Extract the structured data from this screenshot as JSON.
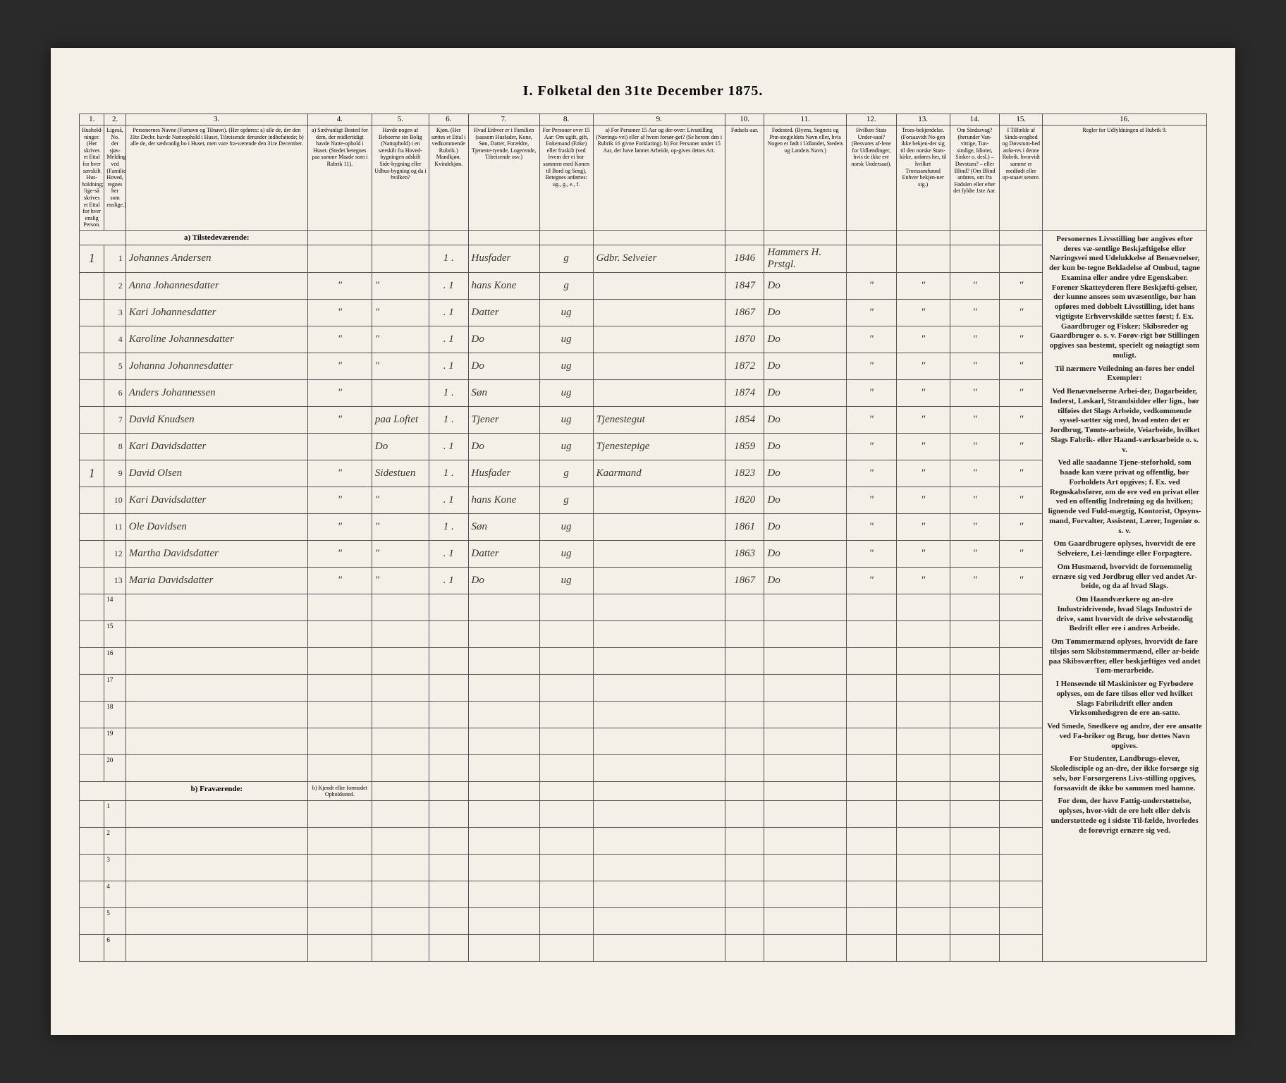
{
  "title": "I.  Folketal  den 31te December 1875.",
  "columns": {
    "nums": [
      "1.",
      "2.",
      "3.",
      "4.",
      "5.",
      "6.",
      "7.",
      "8.",
      "9.",
      "10.",
      "11.",
      "12.",
      "13.",
      "14.",
      "15.",
      "16."
    ],
    "headers": [
      "Hushold-ninger. (Her skrives et Ettal for hver særskilt Hus-holdning; lige-så skrives et Ettal for hver enslig Person.",
      "Ligeså, No. der sjøs-Melding ved (Familiens Hoved, regnes her som enslige.)",
      "Personernes Navne (Fornavn og Tilnavn).\n(Her opføres:\na) alle de, der den 31te Decbr. havde Natteophold i Huset, Tilreisende derunder indbefattede;\nb) alle de, der sædvanlig bo i Huset, men vare fra-værende den 31te December.",
      "a) Sædvanligt Bosted for dem, der midlertidigt havde Natte-ophold i Huset. (Stedet betegnes paa samme Maade som i Rubrik 11).",
      "Havde nogen af Beboerne sin Bolig (Nattophold) i en særskilt fra Hoved-bygningen adskilt Side-bygning eller Udhus-bygning og da i hvilken?",
      "Kjøn. (Her sættes et Ettal i vedkommende Rubrik.) Mandkjøn. Kvindekjøn.",
      "Hvad Enhver er i Familien (saasom Husfader, Kone, Søn, Datter, Forældre, Tjeneste-tyende, Logerende, Tilreisende osv.)",
      "For Personer over 15 Aar: Om ugift, gift, Enkemand (Enke) eller fraskilt (ved hvem der ei bor sammen med Konen til Bord og Seng). Betegnes anførtes: ug., g., e., f.",
      "a) For Personer 15 Aar og der-over: Livsstilling (Nærings-vei) eller af hvem forsør-get? (Se herom den i Rubrik 16 givne Forklaring).\nb) For Personer under 15 Aar, der have lønnet Arbeide, op-gives dettes Art.",
      "Fødsels-aar.",
      "Fødested. (Byens, Sognets og Præ-stegjeldets Navn eller, hvis Nogen er født i Udlandet, Stedets og Landets Navn.)",
      "Hvilken Stats Under-saat? (Besvares af-lene for Udlændinger, hvis de ikke ere norsk Undersaat).",
      "Troes-bekjendelse. (Forsaavidt No-gen ikke bekjen-der sig til den norske Stats-kirke, anføres her, til hvilket Troessamfunnd Enhver bekjen-ner sig.)",
      "Om Sindssvag? (herunder Van-vittige, Tun-sindige, Idioter, Sinker o. desl.) – Døvstum? – eller Blind? (Om Blind anføres, om fra Fødslen eller efter det fyldte 1ste Aar.",
      "I Tilfælde af Sinds-svaghed og Døvstum-hed anfø-res i denne Rubrik. hvorvidt samme er medfødt eller op-staaet senere.",
      "Regler for Udfyldningen af\nRubrik 9."
    ]
  },
  "sections": {
    "present": "a) Tilstedeværende:",
    "absent": "b) Fraværende:",
    "absent_col4": "b) Kjendt eller formodet Opholdssted."
  },
  "rows": [
    {
      "hh": "1",
      "n": "1",
      "name": "Johannes Andersen",
      "c4": "",
      "c5": "",
      "c6": "1 .",
      "c7": "Husfader",
      "c8": "g",
      "c9": "Gdbr. Selveier",
      "c10": "1846",
      "c11": "Hammers H. Prstgl.",
      "c12": "",
      "c13": "",
      "c14": "",
      "c15": ""
    },
    {
      "hh": "",
      "n": "2",
      "name": "Anna Johannesdatter",
      "c4": "\"",
      "c5": "\"",
      "c6": ". 1",
      "c7": "hans Kone",
      "c8": "g",
      "c9": "",
      "c10": "1847",
      "c11": "Do",
      "c12": "\"",
      "c13": "\"",
      "c14": "\"",
      "c15": "\""
    },
    {
      "hh": "",
      "n": "3",
      "name": "Kari Johannesdatter",
      "c4": "\"",
      "c5": "\"",
      "c6": ". 1",
      "c7": "Datter",
      "c8": "ug",
      "c9": "",
      "c10": "1867",
      "c11": "Do",
      "c12": "\"",
      "c13": "\"",
      "c14": "\"",
      "c15": "\""
    },
    {
      "hh": "",
      "n": "4",
      "name": "Karoline Johannesdatter",
      "c4": "\"",
      "c5": "\"",
      "c6": ". 1",
      "c7": "Do",
      "c8": "ug",
      "c9": "",
      "c10": "1870",
      "c11": "Do",
      "c12": "\"",
      "c13": "\"",
      "c14": "\"",
      "c15": "\""
    },
    {
      "hh": "",
      "n": "5",
      "name": "Johanna Johannesdatter",
      "c4": "\"",
      "c5": "\"",
      "c6": ". 1",
      "c7": "Do",
      "c8": "ug",
      "c9": "",
      "c10": "1872",
      "c11": "Do",
      "c12": "\"",
      "c13": "\"",
      "c14": "\"",
      "c15": "\""
    },
    {
      "hh": "",
      "n": "6",
      "name": "Anders Johannessen",
      "c4": "\"",
      "c5": "",
      "c6": "1 .",
      "c7": "Søn",
      "c8": "ug",
      "c9": "",
      "c10": "1874",
      "c11": "Do",
      "c12": "\"",
      "c13": "\"",
      "c14": "\"",
      "c15": "\""
    },
    {
      "hh": "",
      "n": "7",
      "name": "David Knudsen",
      "c4": "\"",
      "c5": "paa Loftet",
      "c6": "1 .",
      "c7": "Tjener",
      "c8": "ug",
      "c9": "Tjenestegut",
      "c10": "1854",
      "c11": "Do",
      "c12": "\"",
      "c13": "\"",
      "c14": "\"",
      "c15": "\""
    },
    {
      "hh": "",
      "n": "8",
      "name": "Kari Davidsdatter",
      "c4": "",
      "c5": "Do",
      "c6": ". 1",
      "c7": "Do",
      "c8": "ug",
      "c9": "Tjenestepige",
      "c10": "1859",
      "c11": "Do",
      "c12": "\"",
      "c13": "\"",
      "c14": "\"",
      "c15": "\""
    },
    {
      "hh": "1",
      "n": "9",
      "name": "David Olsen",
      "c4": "\"",
      "c5": "Sidestuen",
      "c6": "1 .",
      "c7": "Husfader",
      "c8": "g",
      "c9": "Kaarmand",
      "c10": "1823",
      "c11": "Do",
      "c12": "\"",
      "c13": "\"",
      "c14": "\"",
      "c15": "\""
    },
    {
      "hh": "",
      "n": "10",
      "name": "Kari Davidsdatter",
      "c4": "\"",
      "c5": "\"",
      "c6": ". 1",
      "c7": "hans Kone",
      "c8": "g",
      "c9": "",
      "c10": "1820",
      "c11": "Do",
      "c12": "\"",
      "c13": "\"",
      "c14": "\"",
      "c15": "\""
    },
    {
      "hh": "",
      "n": "11",
      "name": "Ole Davidsen",
      "c4": "\"",
      "c5": "\"",
      "c6": "1 .",
      "c7": "Søn",
      "c8": "ug",
      "c9": "",
      "c10": "1861",
      "c11": "Do",
      "c12": "\"",
      "c13": "\"",
      "c14": "\"",
      "c15": "\""
    },
    {
      "hh": "",
      "n": "12",
      "name": "Martha Davidsdatter",
      "c4": "\"",
      "c5": "\"",
      "c6": ". 1",
      "c7": "Datter",
      "c8": "ug",
      "c9": "",
      "c10": "1863",
      "c11": "Do",
      "c12": "\"",
      "c13": "\"",
      "c14": "\"",
      "c15": "\""
    },
    {
      "hh": "",
      "n": "13",
      "name": "Maria Davidsdatter",
      "c4": "\"",
      "c5": "\"",
      "c6": ". 1",
      "c7": "Do",
      "c8": "ug",
      "c9": "",
      "c10": "1867",
      "c11": "Do",
      "c12": "\"",
      "c13": "\"",
      "c14": "\"",
      "c15": "\""
    }
  ],
  "empty_present_from": 14,
  "empty_present_to": 20,
  "empty_absent_from": 1,
  "empty_absent_to": 6,
  "rules_text": [
    "Personernes Livsstilling bør angives efter deres væ-sentlige Beskjæftigelse eller Næringsvei med Udelukkelse af Benævnelser, der kun be-tegne Bekladelse af Ombud, tagne Examina eller andre ydre Egenskaber. Forener Skatteyderen flere Beskjæfti-gelser, der kunne ansees som uvæsentlige, bør han opføres med dobbelt Livsstilling, idet hans vigtigste Erhvervskilde sættes først; f. Ex. Gaardbruger og Fisker; Skibsreder og Gaardbruger o. s. v. Forøv-rigt bør Stillingen opgives saa bestemt, specielt og nøiagtigt som muligt.",
    "Til nærmere Veiledning an-føres her endel Exempler:",
    "Ved Benævnelserne Arbei-der, Dagarbeider, Inderst, Løskarl, Strandsidder eller lign., bør tilføies det Slags Arbeide, vedkommende syssel-sætter sig med, hvad enten det er Jordbrug, Tømte-arbeide, Veiarbeide, hvilket Slags Fabrik- eller Haand-værksarbeide o. s. v.",
    "Ved alle saadanne Tjene-steforhold, som baade kan være privat og offentlig, bør Forholdets Art opgives; f. Ex. ved Regnskabsfører, om de ere ved en privat eller ved en offentlig Indretning og da hvilken; lignende ved Fuld-mægtig, Kontorist, Opsyns-mand, Forvalter, Assistent, Lærer, Ingeniør o. s. v.",
    "Om Gaardbrugere oplyses, hvorvidt de ere Selveiere, Lei-lændinge eller Forpagtere.",
    "Om Husmænd, hvorvidt de fornemmelig ernære sig ved Jordbrug eller ved andet Ar-beide, og da af hvad Slags.",
    "Om Haandværkere og an-dre Industridrivende, hvad Slags Industri de drive, samt hvorvidt de drive selvstændig Bedrift eller ere i andres Arbeide.",
    "Om Tømmermænd oplyses, hvorvidt de fare tilsjøs som Skibstømmermænd, eller ar-beide paa Skibsværfter, eller beskjæftiges ved andet Tøm-merarbeide.",
    "I Henseende til Maskinister og Fyrbødere oplyses, om de fare tilsøs eller ved hvilket Slags Fabrikdrift eller anden Virksomhedsgren de ere an-satte.",
    "Ved Smede, Snedkere og andre, der ere ansatte ved Fa-briker og Brug, bor dettes Navn opgives.",
    "For Studenter, Landbrugs-elever, Skoledisciple og an-dre, der ikke forsørge sig selv, bør Forsørgerens Livs-stilling opgives, forsaavidt de ikke bo sammen med hamne.",
    "For dem, der have Fattig-understøttelse, oplyses, hvor-vidt de ere helt eller delvis understøttede og i sidste Til-fælde, hvorledes de forøvrigt ernære sig ved."
  ],
  "colwidths": [
    "35",
    "30",
    "255",
    "90",
    "80",
    "55",
    "100",
    "75",
    "185",
    "55",
    "115",
    "70",
    "75",
    "70",
    "60",
    "230"
  ]
}
